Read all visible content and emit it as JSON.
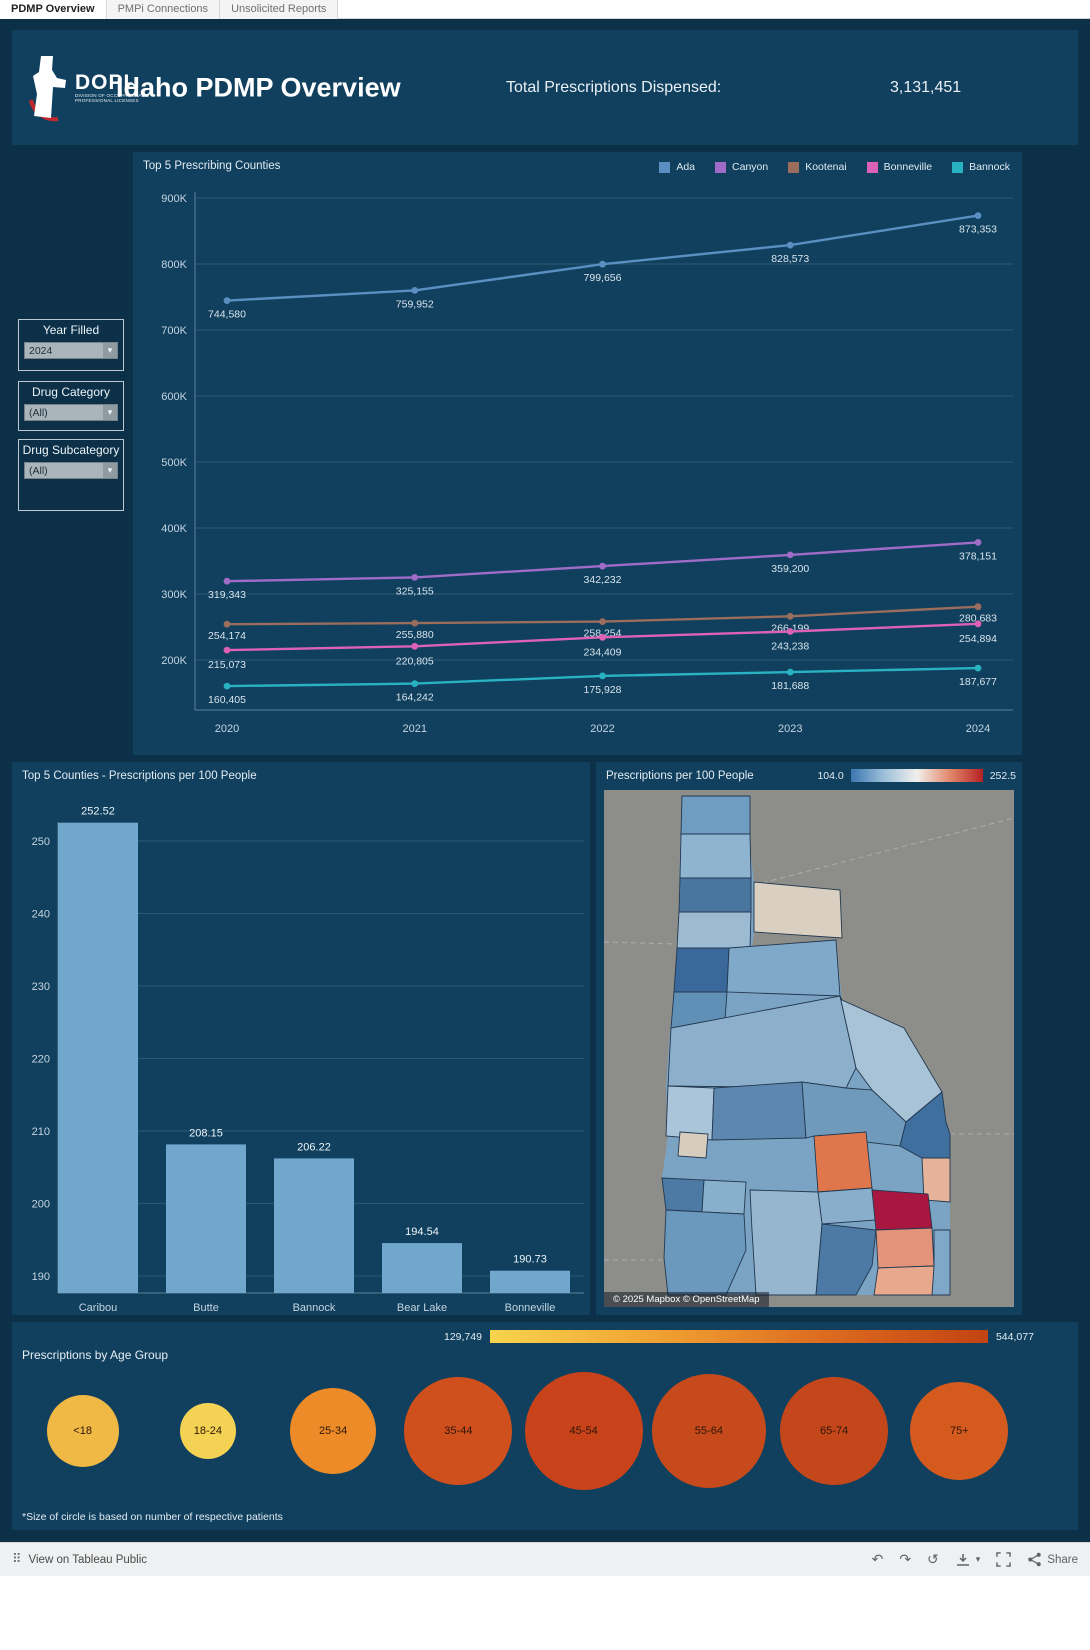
{
  "tabs": [
    {
      "label": "PDMP Overview",
      "active": true
    },
    {
      "label": "PMPi Connections",
      "active": false
    },
    {
      "label": "Unsolicited Reports",
      "active": false
    }
  ],
  "header": {
    "logo_acronym": "DOPL",
    "logo_subtext": "DIVISION OF OCCUPATIONAL & PROFESSIONAL LICENSES",
    "title": "Idaho PDMP Overview",
    "total_label": "Total Prescriptions Dispensed:",
    "total_value": "3,131,451"
  },
  "filters": [
    {
      "label": "Year Filled",
      "value": "2024"
    },
    {
      "label": "Drug Category",
      "value": "(All)"
    },
    {
      "label": "Drug Subcategory",
      "value": "(All)"
    }
  ],
  "line_chart": {
    "type": "line",
    "title": "Top 5 Prescribing Counties",
    "x": [
      2020,
      2021,
      2022,
      2023,
      2024
    ],
    "y_min": 200000,
    "y_max": 900000,
    "y_ticks": [
      "900K",
      "800K",
      "700K",
      "600K",
      "500K",
      "400K",
      "300K",
      "200K"
    ],
    "series": [
      {
        "name": "Ada",
        "color": "#5b8fc2",
        "values": [
          744580,
          759952,
          799656,
          828573,
          873353
        ]
      },
      {
        "name": "Canyon",
        "color": "#a06cc8",
        "values": [
          319343,
          325155,
          342232,
          359200,
          378151
        ]
      },
      {
        "name": "Kootenai",
        "color": "#9a6d5c",
        "values": [
          254174,
          255880,
          258254,
          266199,
          280683
        ]
      },
      {
        "name": "Bonneville",
        "color": "#dd62b5",
        "values": [
          215073,
          220805,
          234409,
          243238,
          254894
        ]
      },
      {
        "name": "Bannock",
        "color": "#29b3c2",
        "values": [
          160405,
          164242,
          175928,
          181688,
          187677
        ]
      }
    ]
  },
  "bar_chart": {
    "type": "bar",
    "title": "Top 5 Counties - Prescriptions per 100 People",
    "categories": [
      "Caribou",
      "Butte",
      "Bannock",
      "Bear Lake",
      "Bonneville"
    ],
    "values": [
      252.52,
      208.15,
      206.22,
      194.54,
      190.73
    ],
    "y_ticks": [
      190,
      200,
      210,
      220,
      230,
      240,
      250
    ],
    "bar_color": "#71a7cd"
  },
  "map_panel": {
    "title": "Prescriptions per 100 People",
    "legend_min": "104.0",
    "legend_max": "252.5",
    "legend_gradient": [
      "#3a76b0",
      "#9dc0da",
      "#f0efec",
      "#e2876a",
      "#b62025"
    ],
    "attribution": "© 2025 Mapbox  © OpenStreetMap"
  },
  "age_panel": {
    "type": "bubble",
    "title": "Prescriptions by Age Group",
    "legend_min": "129,749",
    "legend_max": "544,077",
    "legend_gradient": [
      "#f8d44d",
      "#f0a232",
      "#dd6c20",
      "#c24312"
    ],
    "footnote": "*Size of circle is based on number of respective patients",
    "groups": [
      {
        "label": "<18",
        "size": 72,
        "color": "#f0b844"
      },
      {
        "label": "18-24",
        "size": 56,
        "color": "#f3d254"
      },
      {
        "label": "25-34",
        "size": 86,
        "color": "#ec8b28"
      },
      {
        "label": "35-44",
        "size": 108,
        "color": "#cf4f1d"
      },
      {
        "label": "45-54",
        "size": 118,
        "color": "#c8431a"
      },
      {
        "label": "55-64",
        "size": 114,
        "color": "#c64a1c"
      },
      {
        "label": "65-74",
        "size": 108,
        "color": "#c4471b"
      },
      {
        "label": "75+",
        "size": 98,
        "color": "#d55a1e"
      }
    ]
  },
  "footer": {
    "view_label": "View on Tableau Public",
    "share_label": "Share"
  }
}
